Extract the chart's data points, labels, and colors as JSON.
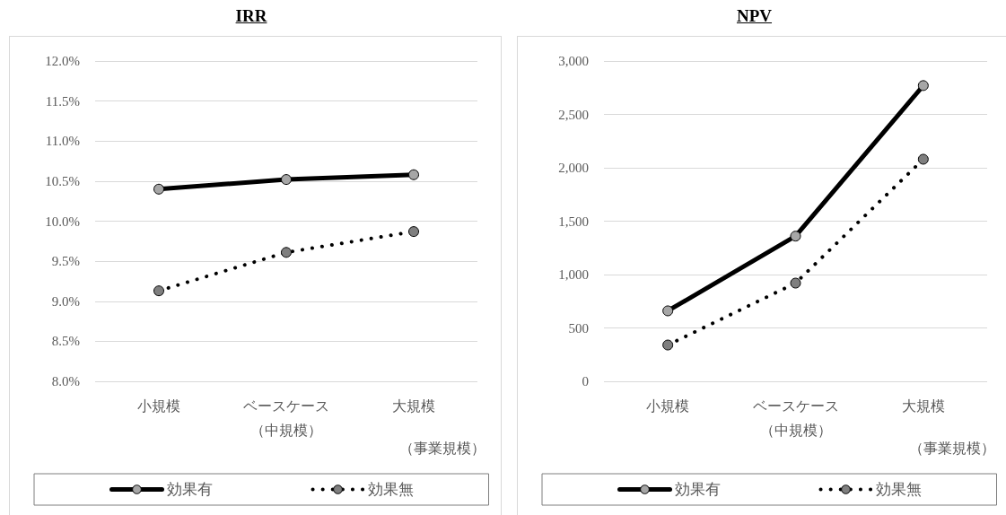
{
  "chart_data": [
    {
      "type": "line",
      "title": "IRR",
      "xlabel": "（事業規模）",
      "categories": [
        "小規模",
        "ベースケース（中規模）",
        "大規模"
      ],
      "series": [
        {
          "name": "効果有",
          "color": "#000000",
          "line_style": "solid",
          "values": [
            10.4,
            10.52,
            10.58
          ]
        },
        {
          "name": "効果無",
          "color": "#000000",
          "line_style": "dotted",
          "values": [
            9.13,
            9.61,
            9.87
          ]
        }
      ],
      "ylim": [
        8,
        12
      ],
      "yticks": [
        {
          "value": 8,
          "label": "8.0%"
        },
        {
          "value": 8.5,
          "label": "8.5%"
        },
        {
          "value": 9,
          "label": "9.0%"
        },
        {
          "value": 9.5,
          "label": "9.5%"
        },
        {
          "value": 10,
          "label": "10.0%"
        },
        {
          "value": 10.5,
          "label": "10.5%"
        },
        {
          "value": 11,
          "label": "11.0%"
        },
        {
          "value": 11.5,
          "label": "11.5%"
        },
        {
          "value": 12,
          "label": "12.0%"
        }
      ],
      "grid": "y",
      "legend": "bottom",
      "marker": "circle"
    },
    {
      "type": "line",
      "title": "NPV",
      "xlabel": "（事業規模）",
      "categories": [
        "小規模",
        "ベースケース（中規模）",
        "大規模"
      ],
      "series": [
        {
          "name": "効果有",
          "color": "#000000",
          "line_style": "solid",
          "values": [
            660,
            1360,
            2770
          ]
        },
        {
          "name": "効果無",
          "color": "#000000",
          "line_style": "dotted",
          "values": [
            340,
            920,
            2080
          ]
        }
      ],
      "ylim": [
        0,
        3000
      ],
      "yticks": [
        0,
        500,
        {
          "value": 1000,
          "label": "1,000"
        },
        {
          "value": 1500,
          "label": "1,500"
        },
        {
          "value": 2000,
          "label": "2,000"
        },
        {
          "value": 2500,
          "label": "2,500"
        },
        {
          "value": 3000,
          "label": "3,000"
        }
      ],
      "grid": "y",
      "legend": "bottom",
      "marker": "circle"
    }
  ]
}
